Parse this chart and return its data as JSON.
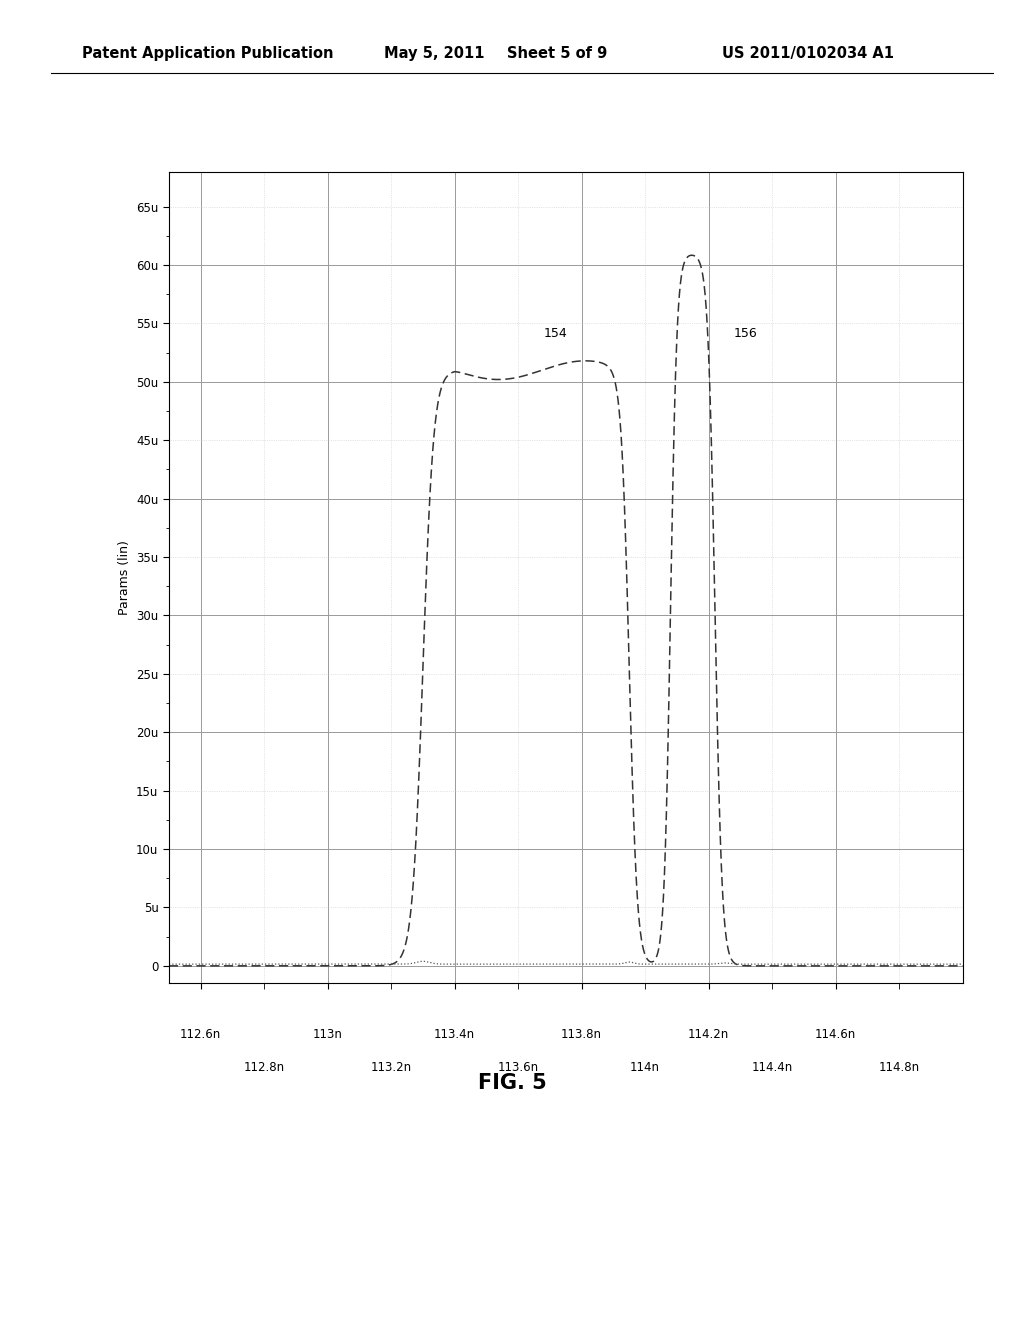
{
  "title_header": "Patent Application Publication",
  "title_date": "May 5, 2011",
  "title_sheet": "Sheet 5 of 9",
  "title_patent": "US 2011/0102034 A1",
  "fig_label": "FIG. 5",
  "ylabel": "Params (lin)",
  "xlabel_major": [
    "112.6n",
    "113n",
    "113.4n",
    "113.8n",
    "114.2n",
    "114.6n"
  ],
  "xlabel_minor": [
    "112.8n",
    "113.2n",
    "113.6n",
    "114n",
    "114.4n",
    "114.8n"
  ],
  "x_major_vals": [
    112.6,
    113.0,
    113.4,
    113.8,
    114.2,
    114.6
  ],
  "x_minor_vals": [
    112.8,
    113.2,
    113.6,
    114.0,
    114.4,
    114.8
  ],
  "ytick_vals": [
    0,
    5,
    10,
    15,
    20,
    25,
    30,
    35,
    40,
    45,
    50,
    55,
    60,
    65
  ],
  "ytick_labels": [
    "0",
    "5u",
    "10u",
    "15u",
    "20u",
    "25u",
    "30u",
    "35u",
    "40u",
    "45u",
    "50u",
    "55u",
    "60u",
    "65u"
  ],
  "xlim": [
    112.5,
    115.0
  ],
  "ylim": [
    -1.5,
    68
  ],
  "bg_color": "#ffffff",
  "plot_bg": "#ffffff",
  "grid_major_color": "#999999",
  "grid_minor_color": "#cccccc",
  "line_color": "#333333",
  "dot_line_color": "#555555"
}
